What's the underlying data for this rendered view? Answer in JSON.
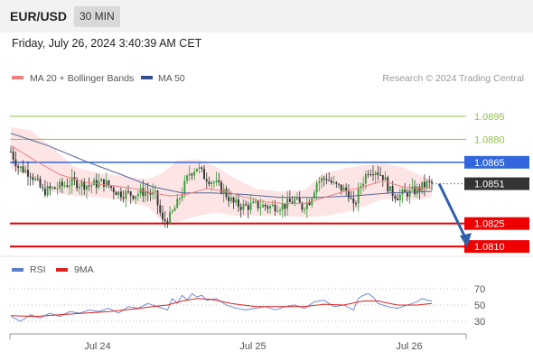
{
  "header": {
    "pair": "EUR/USD",
    "timeframe": "30 MIN"
  },
  "timestamp": "Friday, July 26, 2024 3:40:39 AM CET",
  "legend": {
    "ma20_label": "MA 20 + Bollinger Bands",
    "ma50_label": "MA 50",
    "credit": "Research © 2024 Trading Central"
  },
  "indicator_legend": {
    "rsi_label": "RSI",
    "ma9_label": "9MA"
  },
  "colors": {
    "resistance": "#8fbf4a",
    "pivot": "#3366dd",
    "support": "#ee0000",
    "current": "#333333",
    "ma20": "#f08080",
    "bands": "#fde2e2",
    "ma50": "#556699",
    "arrow": "#3060a8",
    "candle_up": "#3a9a3a",
    "candle_down": "#333333",
    "rsi": "#5b7fd0",
    "rsi_ma": "#dd2222"
  },
  "chart_data": [
    {
      "type": "candlestick",
      "instrument": "EUR/USD",
      "timeframe": "30 MIN",
      "x_ticks": [
        "Jul 24",
        "Jul 25",
        "Jul 26"
      ],
      "y_range": [
        1.0803,
        1.0915
      ],
      "levels": [
        {
          "value": 1.0895,
          "label": "1.0895",
          "kind": "resistance"
        },
        {
          "value": 1.088,
          "label": "1.0880",
          "kind": "resistance"
        },
        {
          "value": 1.0865,
          "label": "1.0865",
          "kind": "pivot"
        },
        {
          "value": 1.0851,
          "label": "1.0851",
          "kind": "current"
        },
        {
          "value": 1.0825,
          "label": "1.0825",
          "kind": "support"
        },
        {
          "value": 1.081,
          "label": "1.0810",
          "kind": "support"
        }
      ],
      "path_close": [
        [
          0,
          1.0872
        ],
        [
          3,
          1.0862
        ],
        [
          8,
          1.0858
        ],
        [
          13,
          1.0846
        ],
        [
          18,
          1.0848
        ],
        [
          25,
          1.0852
        ],
        [
          32,
          1.085
        ],
        [
          38,
          1.0852
        ],
        [
          44,
          1.0845
        ],
        [
          50,
          1.0844
        ],
        [
          55,
          1.0846
        ],
        [
          59,
          1.0843
        ],
        [
          62,
          1.0826
        ],
        [
          65,
          1.0829
        ],
        [
          68,
          1.0838
        ],
        [
          71,
          1.085
        ],
        [
          73,
          1.0858
        ],
        [
          76,
          1.0862
        ],
        [
          79,
          1.0856
        ],
        [
          83,
          1.0852
        ],
        [
          87,
          1.0846
        ],
        [
          91,
          1.0838
        ],
        [
          95,
          1.0836
        ],
        [
          100,
          1.0837
        ],
        [
          106,
          1.0836
        ],
        [
          112,
          1.0837
        ],
        [
          116,
          1.084
        ],
        [
          119,
          1.0836
        ],
        [
          122,
          1.084
        ],
        [
          125,
          1.0852
        ],
        [
          129,
          1.0855
        ],
        [
          132,
          1.085
        ],
        [
          135,
          1.0848
        ],
        [
          138,
          1.0845
        ],
        [
          140,
          1.0835
        ],
        [
          143,
          1.085
        ],
        [
          146,
          1.086
        ],
        [
          149,
          1.086
        ],
        [
          152,
          1.0856
        ],
        [
          155,
          1.0846
        ],
        [
          158,
          1.0843
        ],
        [
          162,
          1.0845
        ],
        [
          166,
          1.0847
        ],
        [
          170,
          1.0851
        ],
        [
          172,
          1.0851
        ]
      ],
      "ma20_path": [
        [
          0,
          1.0876
        ],
        [
          10,
          1.0866
        ],
        [
          20,
          1.0857
        ],
        [
          30,
          1.0852
        ],
        [
          40,
          1.085
        ],
        [
          50,
          1.0848
        ],
        [
          58,
          1.0845
        ],
        [
          65,
          1.0843
        ],
        [
          72,
          1.0844
        ],
        [
          80,
          1.0848
        ],
        [
          88,
          1.0846
        ],
        [
          96,
          1.0842
        ],
        [
          104,
          1.0839
        ],
        [
          112,
          1.0838
        ],
        [
          120,
          1.0838
        ],
        [
          128,
          1.0842
        ],
        [
          136,
          1.0846
        ],
        [
          144,
          1.0849
        ],
        [
          152,
          1.0853
        ],
        [
          160,
          1.0849
        ],
        [
          168,
          1.0848
        ],
        [
          172,
          1.0849
        ]
      ],
      "ma50_path": [
        [
          0,
          1.0884
        ],
        [
          15,
          1.0876
        ],
        [
          30,
          1.0866
        ],
        [
          45,
          1.0857
        ],
        [
          58,
          1.0849
        ],
        [
          70,
          1.0845
        ],
        [
          82,
          1.0845
        ],
        [
          95,
          1.0844
        ],
        [
          110,
          1.0842
        ],
        [
          125,
          1.0842
        ],
        [
          140,
          1.0843
        ],
        [
          155,
          1.0845
        ],
        [
          172,
          1.0846
        ]
      ],
      "band_upper": [
        [
          0,
          1.0888
        ],
        [
          8,
          1.0886
        ],
        [
          16,
          1.0876
        ],
        [
          26,
          1.0862
        ],
        [
          36,
          1.0858
        ],
        [
          46,
          1.0856
        ],
        [
          56,
          1.0854
        ],
        [
          62,
          1.0858
        ],
        [
          68,
          1.0866
        ],
        [
          76,
          1.0867
        ],
        [
          84,
          1.0862
        ],
        [
          92,
          1.0854
        ],
        [
          100,
          1.0848
        ],
        [
          110,
          1.0846
        ],
        [
          120,
          1.0847
        ],
        [
          128,
          1.0858
        ],
        [
          136,
          1.0861
        ],
        [
          144,
          1.0863
        ],
        [
          152,
          1.0864
        ],
        [
          160,
          1.0862
        ],
        [
          168,
          1.0856
        ],
        [
          172,
          1.0854
        ]
      ],
      "band_lower": [
        [
          0,
          1.0861
        ],
        [
          8,
          1.0856
        ],
        [
          16,
          1.0846
        ],
        [
          26,
          1.0843
        ],
        [
          36,
          1.0842
        ],
        [
          46,
          1.084
        ],
        [
          56,
          1.0836
        ],
        [
          62,
          1.0826
        ],
        [
          68,
          1.0826
        ],
        [
          76,
          1.083
        ],
        [
          84,
          1.0832
        ],
        [
          92,
          1.083
        ],
        [
          100,
          1.083
        ],
        [
          110,
          1.083
        ],
        [
          120,
          1.0829
        ],
        [
          128,
          1.083
        ],
        [
          136,
          1.0832
        ],
        [
          144,
          1.0836
        ],
        [
          152,
          1.0841
        ],
        [
          160,
          1.084
        ],
        [
          168,
          1.0841
        ],
        [
          172,
          1.0842
        ]
      ],
      "projection": {
        "from": [
          175,
          1.0851
        ],
        "to": [
          186,
          1.081
        ]
      }
    },
    {
      "type": "line",
      "series": [
        {
          "name": "RSI",
          "kind": "rsi"
        },
        {
          "name": "9MA",
          "kind": "rsi_ma"
        }
      ],
      "y_ticks": [
        70,
        50,
        30
      ],
      "y_range": [
        20,
        80
      ],
      "x_range": [
        0,
        172
      ],
      "rsi_path": [
        [
          0,
          36
        ],
        [
          4,
          30
        ],
        [
          8,
          38
        ],
        [
          12,
          34
        ],
        [
          16,
          40
        ],
        [
          20,
          36
        ],
        [
          24,
          42
        ],
        [
          28,
          40
        ],
        [
          32,
          44
        ],
        [
          36,
          42
        ],
        [
          40,
          46
        ],
        [
          44,
          40
        ],
        [
          48,
          48
        ],
        [
          52,
          46
        ],
        [
          56,
          52
        ],
        [
          60,
          48
        ],
        [
          64,
          44
        ],
        [
          66,
          58
        ],
        [
          68,
          52
        ],
        [
          70,
          62
        ],
        [
          72,
          56
        ],
        [
          74,
          64
        ],
        [
          76,
          60
        ],
        [
          78,
          62
        ],
        [
          80,
          56
        ],
        [
          84,
          58
        ],
        [
          88,
          50
        ],
        [
          92,
          46
        ],
        [
          96,
          44
        ],
        [
          100,
          46
        ],
        [
          104,
          48
        ],
        [
          108,
          44
        ],
        [
          112,
          48
        ],
        [
          116,
          50
        ],
        [
          120,
          46
        ],
        [
          124,
          54
        ],
        [
          128,
          56
        ],
        [
          132,
          48
        ],
        [
          136,
          50
        ],
        [
          140,
          44
        ],
        [
          142,
          58
        ],
        [
          144,
          62
        ],
        [
          146,
          64
        ],
        [
          148,
          60
        ],
        [
          150,
          52
        ],
        [
          154,
          48
        ],
        [
          158,
          46
        ],
        [
          162,
          50
        ],
        [
          166,
          54
        ],
        [
          168,
          58
        ],
        [
          170,
          56
        ],
        [
          172,
          55
        ]
      ],
      "rsi_ma_path": [
        [
          0,
          37
        ],
        [
          10,
          36
        ],
        [
          20,
          38
        ],
        [
          30,
          40
        ],
        [
          40,
          42
        ],
        [
          50,
          45
        ],
        [
          58,
          48
        ],
        [
          64,
          50
        ],
        [
          70,
          55
        ],
        [
          76,
          58
        ],
        [
          82,
          57
        ],
        [
          90,
          52
        ],
        [
          100,
          48
        ],
        [
          110,
          48
        ],
        [
          120,
          48
        ],
        [
          128,
          51
        ],
        [
          136,
          50
        ],
        [
          144,
          55
        ],
        [
          150,
          55
        ],
        [
          158,
          50
        ],
        [
          166,
          50
        ],
        [
          172,
          52
        ]
      ]
    }
  ]
}
